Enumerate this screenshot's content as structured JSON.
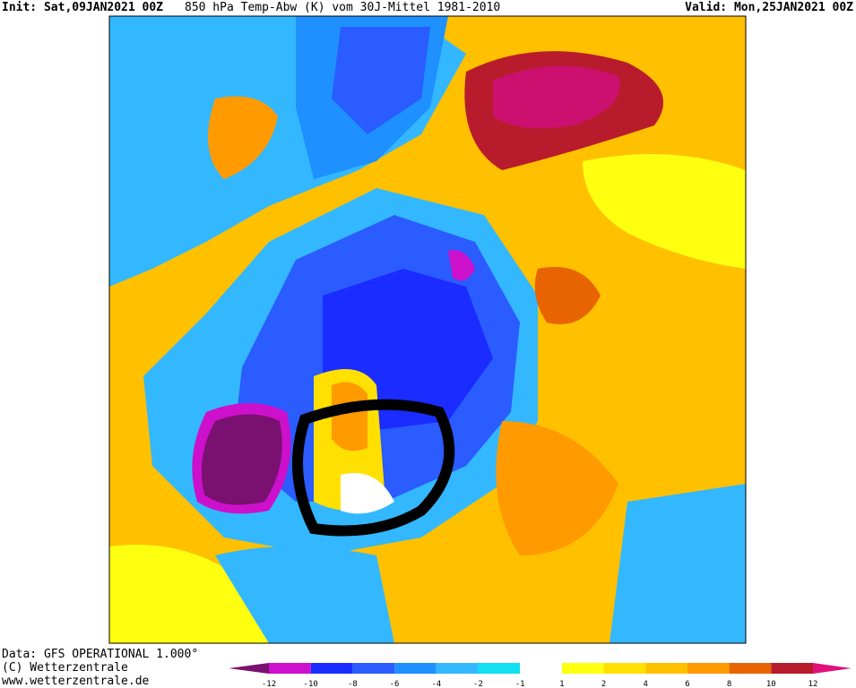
{
  "header": {
    "init": "Init: Sat,09JAN2021 00Z",
    "title": "850 hPa Temp-Abw (K) vom 30J-Mittel 1981-2010",
    "valid": "Valid: Mon,25JAN2021 00Z"
  },
  "footer": {
    "source": "Data: GFS OPERATIONAL 1.000°",
    "copyright": "(C) Wetterzentrale",
    "url": "www.wetterzentrale.de"
  },
  "legend": {
    "labels": [
      "-12",
      "-10",
      "-8",
      "-6",
      "-4",
      "-2",
      "-1",
      "1",
      "2",
      "4",
      "6",
      "8",
      "10",
      "12"
    ],
    "colors": [
      "#7a1070",
      "#cc10cc",
      "#1a2cff",
      "#2a5cff",
      "#1e90ff",
      "#33b8ff",
      "#10e0f0",
      "#ffffff",
      "#ffff10",
      "#ffe000",
      "#ffc000",
      "#ff9a00",
      "#e86400",
      "#b81c2c",
      "#e0107a"
    ]
  }
}
